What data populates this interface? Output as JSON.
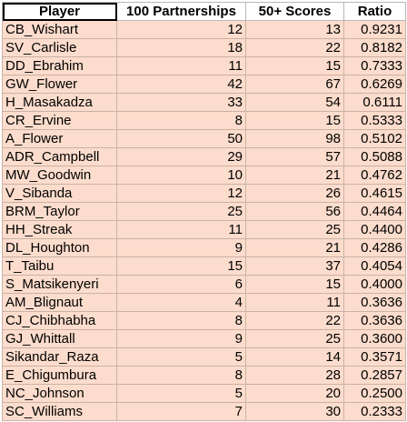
{
  "table": {
    "headers": [
      "Player",
      "100 Partnerships",
      "50+ Scores",
      "Ratio"
    ],
    "rows": [
      [
        "CB_Wishart",
        "12",
        "13",
        "0.9231"
      ],
      [
        "SV_Carlisle",
        "18",
        "22",
        "0.8182"
      ],
      [
        "DD_Ebrahim",
        "11",
        "15",
        "0.7333"
      ],
      [
        "GW_Flower",
        "42",
        "67",
        "0.6269"
      ],
      [
        "H_Masakadza",
        "33",
        "54",
        "0.6111"
      ],
      [
        "CR_Ervine",
        "8",
        "15",
        "0.5333"
      ],
      [
        "A_Flower",
        "50",
        "98",
        "0.5102"
      ],
      [
        "ADR_Campbell",
        "29",
        "57",
        "0.5088"
      ],
      [
        "MW_Goodwin",
        "10",
        "21",
        "0.4762"
      ],
      [
        "V_Sibanda",
        "12",
        "26",
        "0.4615"
      ],
      [
        "BRM_Taylor",
        "25",
        "56",
        "0.4464"
      ],
      [
        "HH_Streak",
        "11",
        "25",
        "0.4400"
      ],
      [
        "DL_Houghton",
        "9",
        "21",
        "0.4286"
      ],
      [
        "T_Taibu",
        "15",
        "37",
        "0.4054"
      ],
      [
        "S_Matsikenyeri",
        "6",
        "15",
        "0.4000"
      ],
      [
        "AM_Blignaut",
        "4",
        "11",
        "0.3636"
      ],
      [
        "CJ_Chibhabha",
        "8",
        "22",
        "0.3636"
      ],
      [
        "GJ_Whittall",
        "9",
        "25",
        "0.3600"
      ],
      [
        "Sikandar_Raza",
        "5",
        "14",
        "0.3571"
      ],
      [
        "E_Chigumbura",
        "8",
        "28",
        "0.2857"
      ],
      [
        "NC_Johnson",
        "5",
        "20",
        "0.2500"
      ],
      [
        "SC_Williams",
        "7",
        "30",
        "0.2333"
      ]
    ]
  },
  "colors": {
    "cell_fill": "#fcdccc",
    "header_fill": "#ffffff",
    "selected_outline": "#000000"
  }
}
